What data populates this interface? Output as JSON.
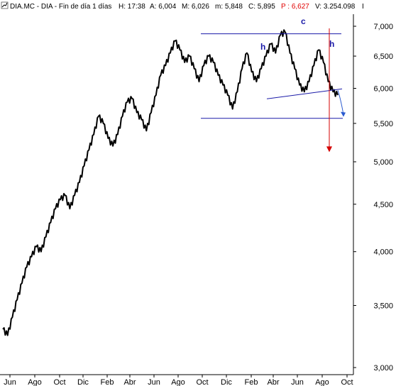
{
  "header": {
    "icon": "chart-arrow-icon",
    "symbol": "DIA.MC - DIA - Fin de día 1 días",
    "h": "H: 17:38",
    "a": "A: 6,004",
    "m": "M: 6,026",
    "mn": "m: 5,848",
    "c": "C: 5,895",
    "p": "P : 6,627",
    "v": "V: 3.254.098",
    "tail": "I"
  },
  "colors": {
    "price": "#000000",
    "pattern_line": "#1a1aa8",
    "target_arrow": "#d40000",
    "projection_arrow": "#2a5ad0",
    "axis": "#000000",
    "header_highlight": "#e00000"
  },
  "chart_data": {
    "type": "line",
    "scale": "log",
    "ylim": [
      3.0,
      7.1
    ],
    "y_ticks": [
      "7,000",
      "6,500",
      "6,000",
      "5,500",
      "5,000",
      "4,500",
      "4,000",
      "3,500",
      "3,000"
    ],
    "x_ticks": [
      "Jun",
      "Ago",
      "Oct",
      "Dic",
      "Feb",
      "Abr",
      "Jun",
      "Ago",
      "Oct",
      "Dic",
      "Feb",
      "Abr",
      "Jun",
      "Ago",
      "Oct"
    ],
    "series": [
      {
        "values": [
          3.3,
          3.25,
          3.4,
          3.55,
          3.7,
          3.85,
          3.95,
          4.05,
          4.0,
          4.15,
          4.3,
          4.45,
          4.55,
          4.6,
          4.45,
          4.6,
          4.75,
          4.95,
          5.15,
          5.35,
          5.6,
          5.5,
          5.3,
          5.2,
          5.35,
          5.6,
          5.8,
          5.85,
          5.65,
          5.55,
          5.4,
          5.65,
          5.9,
          6.2,
          6.35,
          6.55,
          6.75,
          6.6,
          6.4,
          6.5,
          6.3,
          6.1,
          6.35,
          6.5,
          6.4,
          6.2,
          6.05,
          5.9,
          5.7,
          5.95,
          6.3,
          6.55,
          6.25,
          6.1,
          6.3,
          6.5,
          6.7,
          6.55,
          6.85,
          6.9,
          6.55,
          6.3,
          6.05,
          5.95,
          6.1,
          6.35,
          6.6,
          6.4,
          6.1,
          5.95,
          5.9
        ]
      }
    ],
    "annotations": {
      "labels": [
        "c",
        "h",
        "h"
      ],
      "neckline_price": 5.95,
      "top_line_price": 6.87,
      "support_line_price": 5.57,
      "target_price": 5.14
    }
  }
}
